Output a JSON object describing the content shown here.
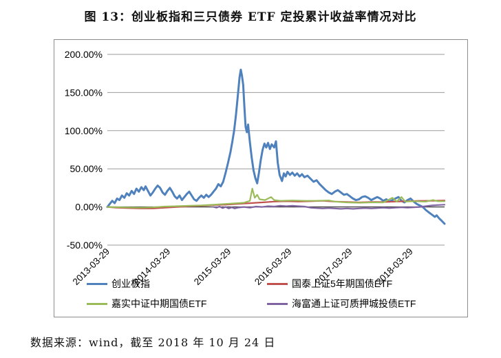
{
  "title": "图 13：创业板指和三只债券 ETF 定投累计收益率情况对比",
  "footer": {
    "source_note": "数据来源：wind，截至 2018 年 10 月 24 日"
  },
  "colors": {
    "grid": "#9a9a9a",
    "zero_axis": "#404040",
    "box_border": "#8c8c8c",
    "series_blue": "#4F81BD",
    "series_red": "#C0504D",
    "series_green": "#9BBB59",
    "series_purple": "#8064A2"
  },
  "chart_data": {
    "type": "line",
    "title": "图 13：创业板指和三只债券 ETF 定投累计收益率情况对比",
    "xlabel": "",
    "ylabel": "",
    "grid": true,
    "legend_position": "bottom",
    "x_unit": "decimal_year",
    "x_range": [
      2013.25,
      2018.81
    ],
    "ylim": [
      -50,
      200
    ],
    "y_tick_values": [
      200,
      150,
      100,
      50,
      0,
      -50
    ],
    "y_tick_labels": [
      "200.00%",
      "150.00%",
      "100.00%",
      "50.00%",
      "0.00%",
      "-50.00%"
    ],
    "x_tick_values": [
      2013.25,
      2014.25,
      2015.25,
      2016.25,
      2017.25,
      2018.25
    ],
    "x_tick_labels": [
      "2013-03-29",
      "2014-03-29",
      "2015-03-29",
      "2016-03-29",
      "2017-03-29",
      "2018-03-29"
    ],
    "series": [
      {
        "name": "创业板指",
        "color": "#4F81BD",
        "width": 3,
        "points": [
          [
            2013.25,
            0
          ],
          [
            2013.29,
            4
          ],
          [
            2013.33,
            8
          ],
          [
            2013.37,
            5
          ],
          [
            2013.41,
            11
          ],
          [
            2013.45,
            9
          ],
          [
            2013.49,
            15
          ],
          [
            2013.53,
            12
          ],
          [
            2013.57,
            18
          ],
          [
            2013.61,
            15
          ],
          [
            2013.65,
            21
          ],
          [
            2013.69,
            17
          ],
          [
            2013.73,
            24
          ],
          [
            2013.77,
            20
          ],
          [
            2013.81,
            26
          ],
          [
            2013.85,
            22
          ],
          [
            2013.88,
            27
          ],
          [
            2013.92,
            21
          ],
          [
            2013.96,
            15
          ],
          [
            2014.0,
            19
          ],
          [
            2014.04,
            24
          ],
          [
            2014.08,
            28
          ],
          [
            2014.12,
            25
          ],
          [
            2014.16,
            19
          ],
          [
            2014.2,
            16
          ],
          [
            2014.24,
            21
          ],
          [
            2014.28,
            25
          ],
          [
            2014.32,
            20
          ],
          [
            2014.36,
            14
          ],
          [
            2014.4,
            11
          ],
          [
            2014.44,
            15
          ],
          [
            2014.48,
            9
          ],
          [
            2014.52,
            13
          ],
          [
            2014.56,
            17
          ],
          [
            2014.6,
            20
          ],
          [
            2014.64,
            15
          ],
          [
            2014.68,
            10
          ],
          [
            2014.72,
            8
          ],
          [
            2014.76,
            12
          ],
          [
            2014.8,
            15
          ],
          [
            2014.84,
            12
          ],
          [
            2014.88,
            16
          ],
          [
            2014.92,
            13
          ],
          [
            2014.96,
            16
          ],
          [
            2015.0,
            20
          ],
          [
            2015.04,
            24
          ],
          [
            2015.08,
            30
          ],
          [
            2015.12,
            27
          ],
          [
            2015.16,
            33
          ],
          [
            2015.2,
            45
          ],
          [
            2015.24,
            58
          ],
          [
            2015.28,
            72
          ],
          [
            2015.31,
            85
          ],
          [
            2015.34,
            100
          ],
          [
            2015.37,
            120
          ],
          [
            2015.4,
            145
          ],
          [
            2015.43,
            170
          ],
          [
            2015.45,
            180
          ],
          [
            2015.47,
            172
          ],
          [
            2015.49,
            160
          ],
          [
            2015.51,
            130
          ],
          [
            2015.53,
            105
          ],
          [
            2015.55,
            98
          ],
          [
            2015.57,
            108
          ],
          [
            2015.6,
            85
          ],
          [
            2015.63,
            65
          ],
          [
            2015.66,
            48
          ],
          [
            2015.69,
            38
          ],
          [
            2015.72,
            31
          ],
          [
            2015.75,
            45
          ],
          [
            2015.78,
            62
          ],
          [
            2015.81,
            75
          ],
          [
            2015.84,
            83
          ],
          [
            2015.87,
            78
          ],
          [
            2015.9,
            84
          ],
          [
            2015.93,
            76
          ],
          [
            2015.96,
            82
          ],
          [
            2016.0,
            78
          ],
          [
            2016.03,
            86
          ],
          [
            2016.06,
            58
          ],
          [
            2016.09,
            42
          ],
          [
            2016.13,
            34
          ],
          [
            2016.16,
            44
          ],
          [
            2016.19,
            40
          ],
          [
            2016.22,
            46
          ],
          [
            2016.26,
            42
          ],
          [
            2016.3,
            45
          ],
          [
            2016.34,
            41
          ],
          [
            2016.38,
            44
          ],
          [
            2016.42,
            40
          ],
          [
            2016.46,
            43
          ],
          [
            2016.5,
            39
          ],
          [
            2016.55,
            41
          ],
          [
            2016.6,
            37
          ],
          [
            2016.65,
            33
          ],
          [
            2016.7,
            35
          ],
          [
            2016.75,
            30
          ],
          [
            2016.8,
            26
          ],
          [
            2016.85,
            22
          ],
          [
            2016.9,
            19
          ],
          [
            2016.95,
            17
          ],
          [
            2017.0,
            20
          ],
          [
            2017.05,
            22
          ],
          [
            2017.1,
            19
          ],
          [
            2017.15,
            16
          ],
          [
            2017.2,
            17
          ],
          [
            2017.25,
            14
          ],
          [
            2017.3,
            11
          ],
          [
            2017.35,
            9
          ],
          [
            2017.4,
            10
          ],
          [
            2017.45,
            13
          ],
          [
            2017.5,
            14
          ],
          [
            2017.55,
            12
          ],
          [
            2017.6,
            9
          ],
          [
            2017.65,
            11
          ],
          [
            2017.7,
            13
          ],
          [
            2017.75,
            11
          ],
          [
            2017.8,
            8
          ],
          [
            2017.85,
            10
          ],
          [
            2017.9,
            7
          ],
          [
            2017.95,
            9
          ],
          [
            2018.0,
            11
          ],
          [
            2018.05,
            13
          ],
          [
            2018.1,
            8
          ],
          [
            2018.15,
            6
          ],
          [
            2018.2,
            9
          ],
          [
            2018.25,
            11
          ],
          [
            2018.3,
            7
          ],
          [
            2018.35,
            4
          ],
          [
            2018.4,
            2
          ],
          [
            2018.45,
            0
          ],
          [
            2018.5,
            -4
          ],
          [
            2018.55,
            -7
          ],
          [
            2018.6,
            -10
          ],
          [
            2018.65,
            -13
          ],
          [
            2018.68,
            -11
          ],
          [
            2018.72,
            -15
          ],
          [
            2018.76,
            -18
          ],
          [
            2018.81,
            -22
          ]
        ]
      },
      {
        "name": "国泰上证5年期国债ETF",
        "color": "#C0504D",
        "width": 2.2,
        "points": [
          [
            2013.25,
            0
          ],
          [
            2013.4,
            -1
          ],
          [
            2013.6,
            -1.5
          ],
          [
            2013.8,
            -2
          ],
          [
            2014.0,
            -2
          ],
          [
            2014.2,
            -1
          ],
          [
            2014.4,
            0
          ],
          [
            2014.6,
            1
          ],
          [
            2014.8,
            1.5
          ],
          [
            2015.0,
            2.5
          ],
          [
            2015.2,
            3
          ],
          [
            2015.4,
            4
          ],
          [
            2015.6,
            5
          ],
          [
            2015.8,
            6
          ],
          [
            2016.0,
            7
          ],
          [
            2016.2,
            7.5
          ],
          [
            2016.4,
            7
          ],
          [
            2016.6,
            7.5
          ],
          [
            2016.8,
            8
          ],
          [
            2017.0,
            7
          ],
          [
            2017.2,
            6.5
          ],
          [
            2017.4,
            6
          ],
          [
            2017.6,
            6.5
          ],
          [
            2017.8,
            6.5
          ],
          [
            2018.0,
            7
          ],
          [
            2018.2,
            7.5
          ],
          [
            2018.4,
            8
          ],
          [
            2018.6,
            8
          ],
          [
            2018.81,
            8.5
          ]
        ]
      },
      {
        "name": "嘉实中证中期国债ETF",
        "color": "#9BBB59",
        "width": 2.2,
        "points": [
          [
            2013.25,
            0
          ],
          [
            2013.5,
            -0.5
          ],
          [
            2013.8,
            -1
          ],
          [
            2014.0,
            -0.5
          ],
          [
            2014.2,
            0.5
          ],
          [
            2014.4,
            1
          ],
          [
            2014.6,
            1.5
          ],
          [
            2014.8,
            2
          ],
          [
            2015.0,
            3
          ],
          [
            2015.2,
            4
          ],
          [
            2015.4,
            5
          ],
          [
            2015.5,
            5.5
          ],
          [
            2015.6,
            8
          ],
          [
            2015.64,
            24
          ],
          [
            2015.68,
            12
          ],
          [
            2015.72,
            16
          ],
          [
            2015.76,
            10
          ],
          [
            2015.85,
            9
          ],
          [
            2015.95,
            13
          ],
          [
            2016.0,
            9
          ],
          [
            2016.1,
            8
          ],
          [
            2016.3,
            8.5
          ],
          [
            2016.5,
            8
          ],
          [
            2016.7,
            8
          ],
          [
            2016.9,
            8.5
          ],
          [
            2017.0,
            7
          ],
          [
            2017.2,
            6
          ],
          [
            2017.4,
            5.5
          ],
          [
            2017.6,
            6
          ],
          [
            2017.8,
            6
          ],
          [
            2017.95,
            12
          ],
          [
            2018.02,
            7
          ],
          [
            2018.1,
            13
          ],
          [
            2018.16,
            7
          ],
          [
            2018.3,
            7.5
          ],
          [
            2018.5,
            7
          ],
          [
            2018.62,
            9
          ],
          [
            2018.7,
            7.5
          ],
          [
            2018.81,
            7.5
          ]
        ]
      },
      {
        "name": "海富通上证可质押城投债ETF",
        "color": "#8064A2",
        "width": 2.2,
        "points": [
          [
            2015.0,
            0
          ],
          [
            2015.05,
            -1
          ],
          [
            2015.1,
            0.5
          ],
          [
            2015.15,
            -1.5
          ],
          [
            2015.2,
            0
          ],
          [
            2015.25,
            -2
          ],
          [
            2015.3,
            -0.5
          ],
          [
            2015.35,
            -2
          ],
          [
            2015.4,
            -1
          ],
          [
            2015.5,
            0
          ],
          [
            2015.6,
            -1
          ],
          [
            2015.7,
            0.5
          ],
          [
            2015.8,
            0
          ],
          [
            2015.9,
            1
          ],
          [
            2016.0,
            0.5
          ],
          [
            2016.1,
            1.5
          ],
          [
            2016.2,
            1
          ],
          [
            2016.3,
            1.5
          ],
          [
            2016.4,
            1
          ],
          [
            2016.5,
            0.5
          ],
          [
            2016.6,
            -1
          ],
          [
            2016.7,
            -1.5
          ],
          [
            2016.8,
            -2
          ],
          [
            2016.9,
            -1.5
          ],
          [
            2017.0,
            -2
          ],
          [
            2017.1,
            -2.5
          ],
          [
            2017.2,
            -2
          ],
          [
            2017.3,
            -2.5
          ],
          [
            2017.4,
            -2
          ],
          [
            2017.5,
            -1.5
          ],
          [
            2017.6,
            -2
          ],
          [
            2017.7,
            -1.5
          ],
          [
            2017.8,
            -1
          ],
          [
            2017.9,
            -1.5
          ],
          [
            2018.0,
            -1
          ],
          [
            2018.1,
            -0.5
          ],
          [
            2018.2,
            -1
          ],
          [
            2018.3,
            -0.5
          ],
          [
            2018.4,
            0
          ],
          [
            2018.5,
            1
          ],
          [
            2018.6,
            2
          ],
          [
            2018.7,
            2.5
          ],
          [
            2018.81,
            3
          ]
        ]
      }
    ]
  }
}
